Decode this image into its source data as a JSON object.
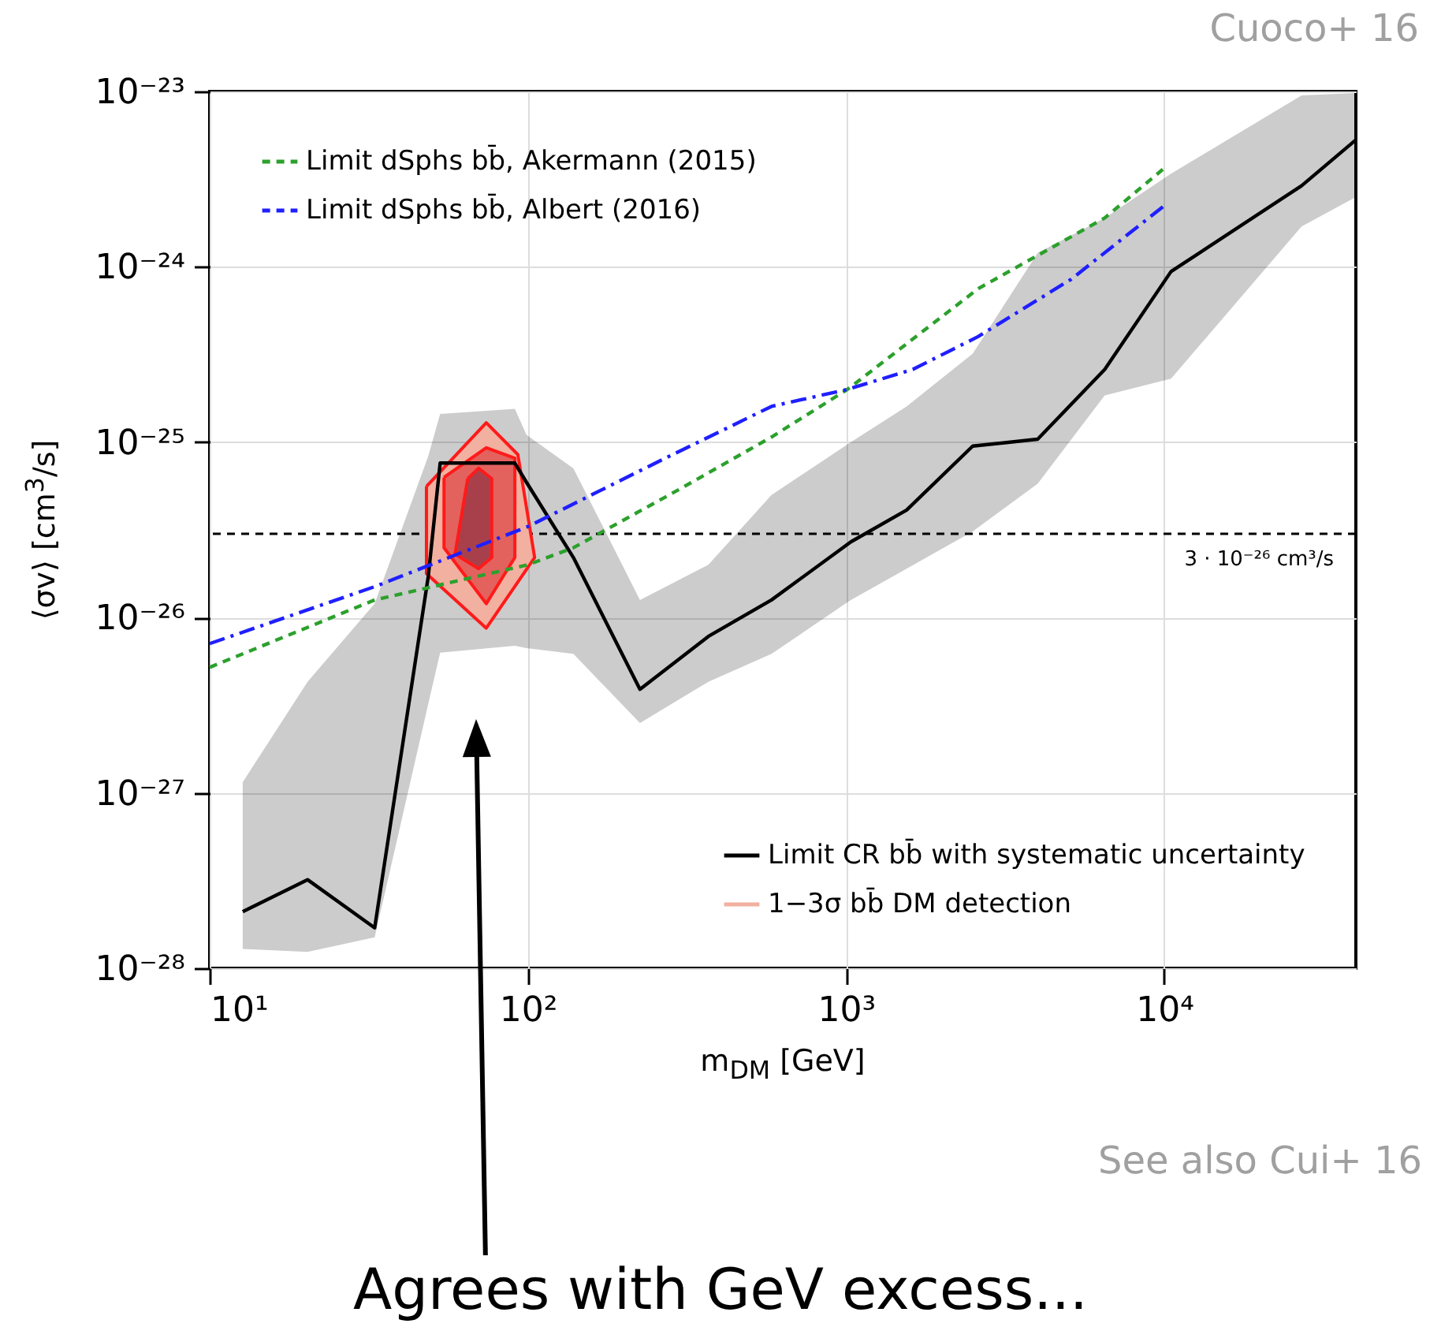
{
  "chart_data": {
    "type": "line",
    "xlabel": "m$_{DM}$  [GeV]",
    "ylabel": "⟨σv⟩  [cm$^{3}$/s]",
    "log": "xy",
    "grid": true,
    "xlim": [
      10,
      40000
    ],
    "xticks": [
      {
        "value": 10,
        "label": "10¹"
      },
      {
        "value": 100,
        "label": "10²"
      },
      {
        "value": 1000,
        "label": "10³"
      },
      {
        "value": 10000,
        "label": "10⁴"
      }
    ],
    "ylim": [
      1e-28,
      1e-23
    ],
    "yticks": [
      {
        "value": 1e-28,
        "label": "10⁻²⁸"
      },
      {
        "value": 1e-27,
        "label": "10⁻²⁷"
      },
      {
        "value": 1e-26,
        "label": "10⁻²⁶"
      },
      {
        "value": 1e-25,
        "label": "10⁻²⁵"
      },
      {
        "value": 1e-24,
        "label": "10⁻²⁴"
      },
      {
        "value": 1e-23,
        "label": "10⁻²³"
      }
    ],
    "legend": [
      "top left",
      "bottom right"
    ],
    "series": [
      {
        "name": "Limit dSphs bb̄, Akermann (2015)",
        "color": "#2ca02c",
        "line_style": "dashed",
        "x": [
          10,
          33,
          100,
          139,
          300,
          583,
          1010,
          2600,
          6500,
          9900
        ],
        "values": [
          5.2e-27,
          1.26e-26,
          2e-26,
          2.5e-26,
          5.4e-26,
          1.07e-25,
          2e-25,
          7.5e-25,
          1.9e-24,
          3.6e-24
        ]
      },
      {
        "name": "Limit dSphs bb̄, Albert (2016)",
        "color": "#1f1fff",
        "line_style": "dashdot",
        "x": [
          10,
          33,
          100,
          270,
          583,
          1010,
          1620,
          2600,
          5100,
          9900
        ],
        "values": [
          7.1e-27,
          1.5e-26,
          3.3e-26,
          8.1e-26,
          1.6e-25,
          2e-25,
          2.6e-25,
          4e-25,
          8.5e-25,
          2.2e-24
        ]
      },
      {
        "name": "Limit CR bb̄ with systematic uncertainty",
        "color": "#000000",
        "line_style": "solid",
        "x": [
          12.7,
          20.3,
          33,
          48.6,
          53,
          91,
          99,
          139,
          225,
          369,
          583,
          1035,
          1550,
          2500,
          4000,
          6500,
          10500,
          27000,
          40000
        ],
        "values": [
          2.1e-28,
          3.2e-28,
          1.7e-28,
          1.7e-26,
          7.6e-26,
          7.6e-26,
          5.9e-26,
          2.2e-26,
          3.9e-27,
          7.8e-27,
          1.26e-26,
          2.7e-26,
          4.1e-26,
          9.5e-26,
          1.04e-25,
          2.6e-25,
          9.4e-25,
          2.9e-24,
          5.3e-24
        ],
        "lower": [
          1.29e-28,
          1.24e-28,
          1.5e-28,
          3.2e-27,
          6.3e-27,
          6.9e-27,
          6.7e-27,
          6.2e-27,
          2.5e-27,
          4.3e-27,
          6.2e-27,
          1.26e-26,
          1.9e-26,
          3.1e-26,
          5.8e-26,
          1.85e-25,
          2.3e-25,
          1.7e-24,
          2.5e-24
        ],
        "upper": [
          1.15e-27,
          4.3e-27,
          1.2e-26,
          8.3e-26,
          1.45e-25,
          1.55e-25,
          1.1e-25,
          7.1e-26,
          1.26e-26,
          2e-26,
          5e-26,
          1e-25,
          1.6e-25,
          3.2e-25,
          1.2e-24,
          1.9e-24,
          3.4e-24,
          9.5e-24,
          9.8e-24
        ]
      },
      {
        "type": "area",
        "name": "1−3σ bb̄ DM detection",
        "color": "#f2b0a0",
        "x": [
          48,
          74,
          93,
          105,
          74,
          48,
          48
        ],
        "values": [
          5.6e-26,
          1.29e-25,
          8.5e-26,
          2.2e-26,
          8.7e-27,
          1.78e-26,
          5.6e-26
        ]
      },
      {
        "type": "area",
        "color": "#e3625e",
        "x": [
          54.5,
          74,
          91,
          91,
          74,
          54.5,
          54.5
        ],
        "values": [
          6.3e-26,
          9.3e-26,
          8.1e-26,
          2.2e-26,
          1.2e-26,
          2.5e-26,
          6.3e-26
        ]
      },
      {
        "type": "area",
        "color": "#a8404c",
        "x": [
          64.7,
          70,
          77,
          77,
          70,
          59,
          64.7
        ],
        "values": [
          6.2e-26,
          7.1e-26,
          6.2e-26,
          2.2e-26,
          1.9e-26,
          2.3e-26,
          6.2e-26
        ]
      }
    ],
    "ref_lines": [
      {
        "axis": "y",
        "value": 3e-26,
        "label": "3 · 10⁻²⁶ cm³/s",
        "color": "#000000",
        "line_style": "dashed"
      }
    ],
    "annotations": [
      "Cuoco+ 16",
      "See also Cui+ 16",
      "Agrees with GeV excess..."
    ]
  }
}
